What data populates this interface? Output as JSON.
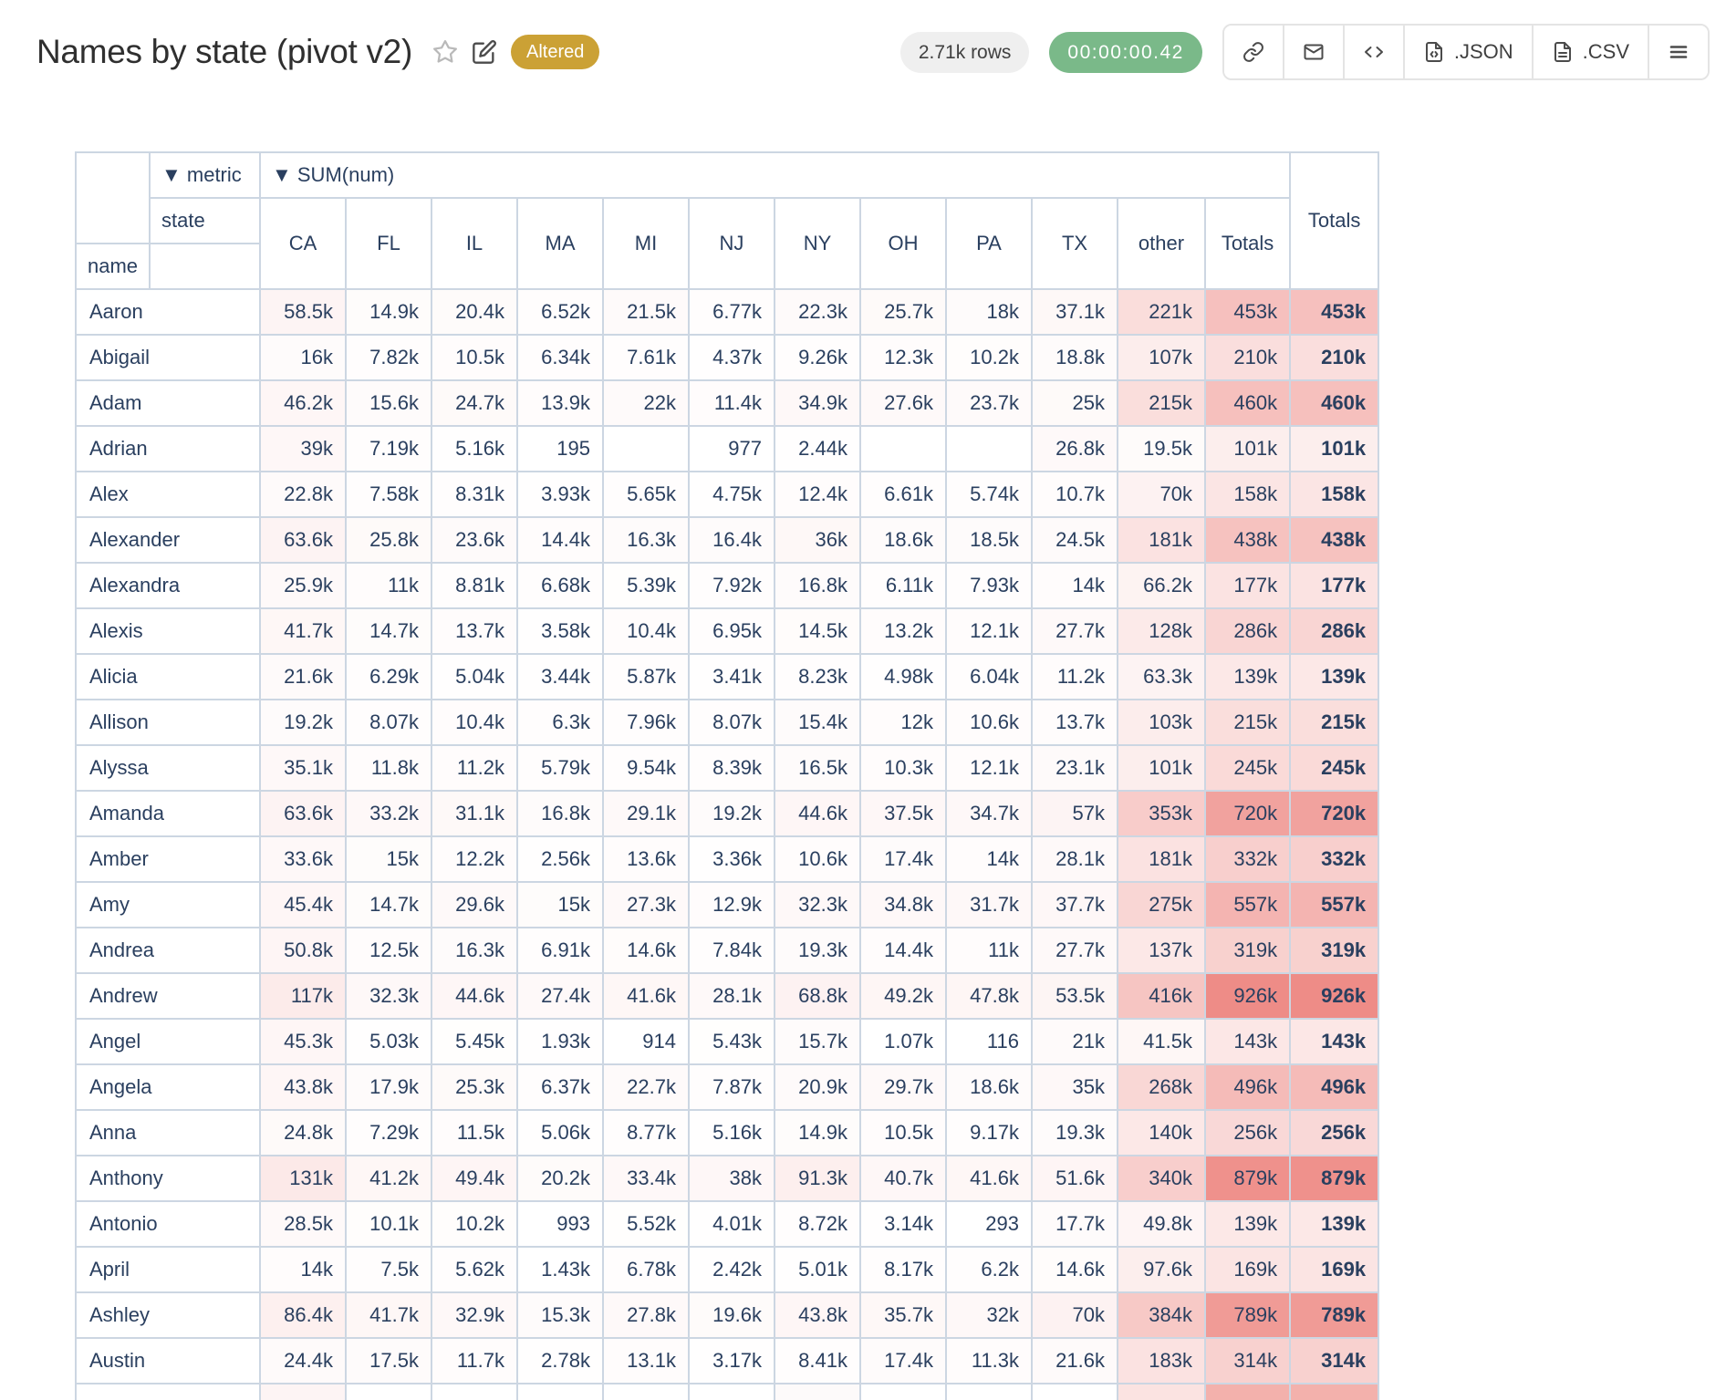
{
  "header": {
    "title": "Names by state (pivot v2)",
    "altered_badge": "Altered",
    "rows_pill": "2.71k rows",
    "timer_pill": "00:00:00.42",
    "export_json_label": ".JSON",
    "export_csv_label": ".CSV"
  },
  "colors": {
    "altered_badge": "#cba135",
    "timer_pill_bg": "#7ab989",
    "rows_pill_bg": "#efefef",
    "heat_max": "#ee8c87",
    "table_text": "#2a3f5f",
    "table_border": "#ccd6e2"
  },
  "pivot": {
    "metric_axis_label": "▼ metric",
    "metric_value_label": "▼ SUM(num)",
    "state_axis_label": "state",
    "row_axis_label": "name",
    "grand_total_label": "Totals",
    "columns": [
      "CA",
      "FL",
      "IL",
      "MA",
      "MI",
      "NJ",
      "NY",
      "OH",
      "PA",
      "TX",
      "other",
      "Totals"
    ],
    "rows": [
      {
        "name": "Aaron",
        "cells": [
          "58.5k",
          "14.9k",
          "20.4k",
          "6.52k",
          "21.5k",
          "6.77k",
          "22.3k",
          "25.7k",
          "18k",
          "37.1k",
          "221k",
          "453k"
        ],
        "total": "453k"
      },
      {
        "name": "Abigail",
        "cells": [
          "16k",
          "7.82k",
          "10.5k",
          "6.34k",
          "7.61k",
          "4.37k",
          "9.26k",
          "12.3k",
          "10.2k",
          "18.8k",
          "107k",
          "210k"
        ],
        "total": "210k"
      },
      {
        "name": "Adam",
        "cells": [
          "46.2k",
          "15.6k",
          "24.7k",
          "13.9k",
          "22k",
          "11.4k",
          "34.9k",
          "27.6k",
          "23.7k",
          "25k",
          "215k",
          "460k"
        ],
        "total": "460k"
      },
      {
        "name": "Adrian",
        "cells": [
          "39k",
          "7.19k",
          "5.16k",
          "195",
          "",
          "977",
          "2.44k",
          "",
          "",
          "26.8k",
          "19.5k",
          "101k"
        ],
        "total": "101k"
      },
      {
        "name": "Alex",
        "cells": [
          "22.8k",
          "7.58k",
          "8.31k",
          "3.93k",
          "5.65k",
          "4.75k",
          "12.4k",
          "6.61k",
          "5.74k",
          "10.7k",
          "70k",
          "158k"
        ],
        "total": "158k"
      },
      {
        "name": "Alexander",
        "cells": [
          "63.6k",
          "25.8k",
          "23.6k",
          "14.4k",
          "16.3k",
          "16.4k",
          "36k",
          "18.6k",
          "18.5k",
          "24.5k",
          "181k",
          "438k"
        ],
        "total": "438k"
      },
      {
        "name": "Alexandra",
        "cells": [
          "25.9k",
          "11k",
          "8.81k",
          "6.68k",
          "5.39k",
          "7.92k",
          "16.8k",
          "6.11k",
          "7.93k",
          "14k",
          "66.2k",
          "177k"
        ],
        "total": "177k"
      },
      {
        "name": "Alexis",
        "cells": [
          "41.7k",
          "14.7k",
          "13.7k",
          "3.58k",
          "10.4k",
          "6.95k",
          "14.5k",
          "13.2k",
          "12.1k",
          "27.7k",
          "128k",
          "286k"
        ],
        "total": "286k"
      },
      {
        "name": "Alicia",
        "cells": [
          "21.6k",
          "6.29k",
          "5.04k",
          "3.44k",
          "5.87k",
          "3.41k",
          "8.23k",
          "4.98k",
          "6.04k",
          "11.2k",
          "63.3k",
          "139k"
        ],
        "total": "139k"
      },
      {
        "name": "Allison",
        "cells": [
          "19.2k",
          "8.07k",
          "10.4k",
          "6.3k",
          "7.96k",
          "8.07k",
          "15.4k",
          "12k",
          "10.6k",
          "13.7k",
          "103k",
          "215k"
        ],
        "total": "215k"
      },
      {
        "name": "Alyssa",
        "cells": [
          "35.1k",
          "11.8k",
          "11.2k",
          "5.79k",
          "9.54k",
          "8.39k",
          "16.5k",
          "10.3k",
          "12.1k",
          "23.1k",
          "101k",
          "245k"
        ],
        "total": "245k"
      },
      {
        "name": "Amanda",
        "cells": [
          "63.6k",
          "33.2k",
          "31.1k",
          "16.8k",
          "29.1k",
          "19.2k",
          "44.6k",
          "37.5k",
          "34.7k",
          "57k",
          "353k",
          "720k"
        ],
        "total": "720k"
      },
      {
        "name": "Amber",
        "cells": [
          "33.6k",
          "15k",
          "12.2k",
          "2.56k",
          "13.6k",
          "3.36k",
          "10.6k",
          "17.4k",
          "14k",
          "28.1k",
          "181k",
          "332k"
        ],
        "total": "332k"
      },
      {
        "name": "Amy",
        "cells": [
          "45.4k",
          "14.7k",
          "29.6k",
          "15k",
          "27.3k",
          "12.9k",
          "32.3k",
          "34.8k",
          "31.7k",
          "37.7k",
          "275k",
          "557k"
        ],
        "total": "557k"
      },
      {
        "name": "Andrea",
        "cells": [
          "50.8k",
          "12.5k",
          "16.3k",
          "6.91k",
          "14.6k",
          "7.84k",
          "19.3k",
          "14.4k",
          "11k",
          "27.7k",
          "137k",
          "319k"
        ],
        "total": "319k"
      },
      {
        "name": "Andrew",
        "cells": [
          "117k",
          "32.3k",
          "44.6k",
          "27.4k",
          "41.6k",
          "28.1k",
          "68.8k",
          "49.2k",
          "47.8k",
          "53.5k",
          "416k",
          "926k"
        ],
        "total": "926k"
      },
      {
        "name": "Angel",
        "cells": [
          "45.3k",
          "5.03k",
          "5.45k",
          "1.93k",
          "914",
          "5.43k",
          "15.7k",
          "1.07k",
          "116",
          "21k",
          "41.5k",
          "143k"
        ],
        "total": "143k"
      },
      {
        "name": "Angela",
        "cells": [
          "43.8k",
          "17.9k",
          "25.3k",
          "6.37k",
          "22.7k",
          "7.87k",
          "20.9k",
          "29.7k",
          "18.6k",
          "35k",
          "268k",
          "496k"
        ],
        "total": "496k"
      },
      {
        "name": "Anna",
        "cells": [
          "24.8k",
          "7.29k",
          "11.5k",
          "5.06k",
          "8.77k",
          "5.16k",
          "14.9k",
          "10.5k",
          "9.17k",
          "19.3k",
          "140k",
          "256k"
        ],
        "total": "256k"
      },
      {
        "name": "Anthony",
        "cells": [
          "131k",
          "41.2k",
          "49.4k",
          "20.2k",
          "33.4k",
          "38k",
          "91.3k",
          "40.7k",
          "41.6k",
          "51.6k",
          "340k",
          "879k"
        ],
        "total": "879k"
      },
      {
        "name": "Antonio",
        "cells": [
          "28.5k",
          "10.1k",
          "10.2k",
          "993",
          "5.52k",
          "4.01k",
          "8.72k",
          "3.14k",
          "293",
          "17.7k",
          "49.8k",
          "139k"
        ],
        "total": "139k"
      },
      {
        "name": "April",
        "cells": [
          "14k",
          "7.5k",
          "5.62k",
          "1.43k",
          "6.78k",
          "2.42k",
          "5.01k",
          "8.17k",
          "6.2k",
          "14.6k",
          "97.6k",
          "169k"
        ],
        "total": "169k"
      },
      {
        "name": "Ashley",
        "cells": [
          "86.4k",
          "41.7k",
          "32.9k",
          "15.3k",
          "27.8k",
          "19.6k",
          "43.8k",
          "35.7k",
          "32k",
          "70k",
          "384k",
          "789k"
        ],
        "total": "789k"
      },
      {
        "name": "Austin",
        "cells": [
          "24.4k",
          "17.5k",
          "11.7k",
          "2.78k",
          "13.1k",
          "3.17k",
          "8.41k",
          "17.4k",
          "11.3k",
          "21.6k",
          "183k",
          "314k"
        ],
        "total": "314k"
      }
    ]
  }
}
